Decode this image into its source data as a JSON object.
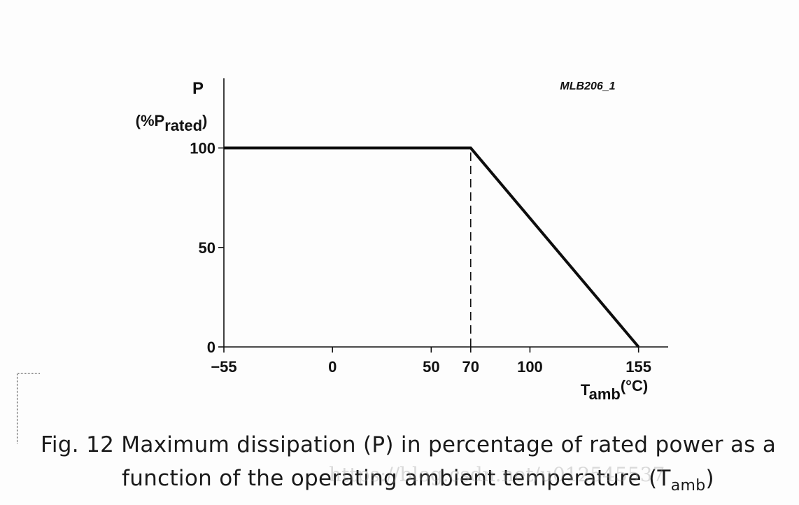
{
  "chart_data": {
    "type": "line",
    "code": "MLB206_1",
    "ylabel": "P",
    "ylabel_sub_prefix": "(%P",
    "ylabel_sub": "rated",
    "ylabel_sub_suffix": ")",
    "xlabel_main": "T",
    "xlabel_sub": "amb",
    "xlabel_unit": "(°C)",
    "xlim": [
      -55,
      170
    ],
    "ylim": [
      0,
      135
    ],
    "xticks": [
      {
        "value": -55,
        "label": "−55"
      },
      {
        "value": 0,
        "label": "0"
      },
      {
        "value": 50,
        "label": "50"
      },
      {
        "value": 70,
        "label": "70"
      },
      {
        "value": 100,
        "label": "100"
      },
      {
        "value": 155,
        "label": "155"
      }
    ],
    "yticks": [
      {
        "value": 0,
        "label": "0"
      },
      {
        "value": 50,
        "label": "50"
      },
      {
        "value": 100,
        "label": "100"
      }
    ],
    "series": [
      {
        "name": "Maximum dissipation",
        "x": [
          -55,
          70,
          155
        ],
        "y": [
          100,
          100,
          0
        ]
      }
    ],
    "reference_line": {
      "x": 70,
      "y_from": 0,
      "y_to": 100,
      "style": "dashed"
    }
  },
  "caption": {
    "label": "Fig. 12",
    "line1": "Maximum dissipation (P) in percentage of rated power as a",
    "line2_prefix": "function of the operating ambient temperature (T",
    "line2_sub": "amb",
    "line2_suffix": ")"
  },
  "watermark": "https://blog.csdn.net/u012545537"
}
